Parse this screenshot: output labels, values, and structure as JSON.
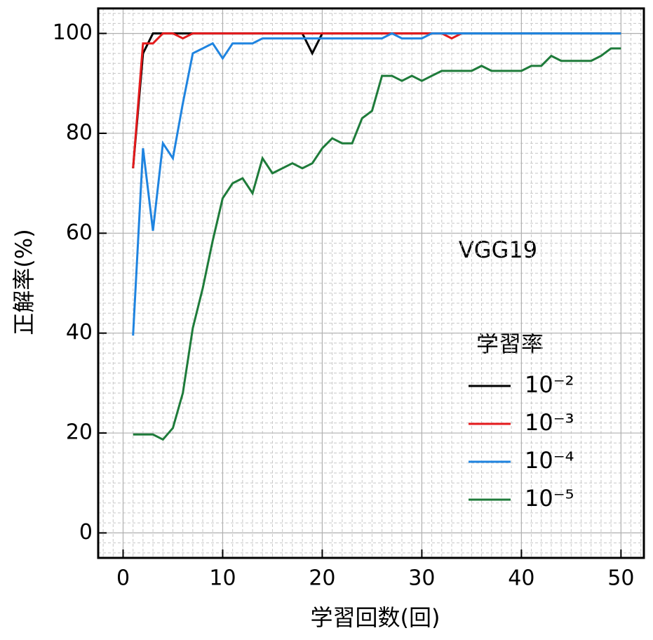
{
  "chart_data": {
    "type": "line",
    "annotation": "VGG19",
    "x_label": "学習回数(回)",
    "y_label": "正解率(%)",
    "legend_title": "学習率",
    "legend": "right",
    "grid": true,
    "xlim": [
      -2.5,
      52.3
    ],
    "ylim": [
      -5,
      105
    ],
    "xticks": [
      0,
      10,
      20,
      30,
      40,
      50
    ],
    "yticks": [
      0,
      20,
      40,
      60,
      80,
      100
    ],
    "x": [
      1,
      2,
      3,
      4,
      5,
      6,
      7,
      8,
      9,
      10,
      11,
      12,
      13,
      14,
      15,
      16,
      17,
      18,
      19,
      20,
      21,
      22,
      23,
      24,
      25,
      26,
      27,
      28,
      29,
      30,
      31,
      32,
      33,
      34,
      35,
      36,
      37,
      38,
      39,
      40,
      41,
      42,
      43,
      44,
      45,
      46,
      47,
      48,
      49,
      50
    ],
    "series": [
      {
        "name": "10⁻²",
        "color": "#000000",
        "values": [
          73,
          96,
          100,
          100,
          100,
          100,
          100,
          100,
          100,
          100,
          100,
          100,
          100,
          100,
          100,
          100,
          100,
          100,
          96,
          100,
          100,
          100,
          100,
          100,
          100,
          100,
          100,
          100,
          100,
          100,
          100,
          100,
          100,
          100,
          100,
          100,
          100,
          100,
          100,
          100,
          100,
          100,
          100,
          100,
          100,
          100,
          100,
          100,
          100,
          100
        ]
      },
      {
        "name": "10⁻³",
        "color": "#e41a1c",
        "values": [
          73,
          98,
          98,
          100,
          100,
          99,
          100,
          100,
          100,
          100,
          100,
          100,
          100,
          100,
          100,
          100,
          100,
          100,
          100,
          100,
          100,
          100,
          100,
          100,
          100,
          100,
          100,
          100,
          100,
          100,
          100,
          100,
          99,
          100,
          null,
          null,
          null,
          null,
          null,
          null,
          null,
          null,
          null,
          null,
          null,
          null,
          null,
          null,
          null,
          null
        ]
      },
      {
        "name": "10⁻⁴",
        "color": "#1f84e0",
        "values": [
          39.5,
          77,
          60.5,
          78,
          75,
          86,
          96,
          97,
          98,
          95,
          98,
          98,
          98,
          99,
          99,
          99,
          99,
          99,
          99,
          99,
          99,
          99,
          99,
          99,
          99,
          99,
          100,
          99,
          99,
          99,
          100,
          100,
          100,
          100,
          100,
          100,
          100,
          100,
          100,
          100,
          100,
          100,
          100,
          100,
          100,
          100,
          100,
          100,
          100,
          100
        ]
      },
      {
        "name": "10⁻⁵",
        "color": "#1e7b3a",
        "values": [
          19.7,
          19.7,
          19.7,
          18.7,
          21,
          28,
          41,
          49,
          58.5,
          67,
          70,
          71,
          68,
          75,
          72,
          73,
          74,
          73,
          74,
          77,
          79,
          78,
          78,
          83,
          84.5,
          91.5,
          91.5,
          90.5,
          91.5,
          90.5,
          91.5,
          92.5,
          92.5,
          92.5,
          92.5,
          93.5,
          92.5,
          92.5,
          92.5,
          92.5,
          93.5,
          93.5,
          95.5,
          94.5,
          94.5,
          94.5,
          94.5,
          95.5,
          97,
          97
        ]
      }
    ]
  }
}
